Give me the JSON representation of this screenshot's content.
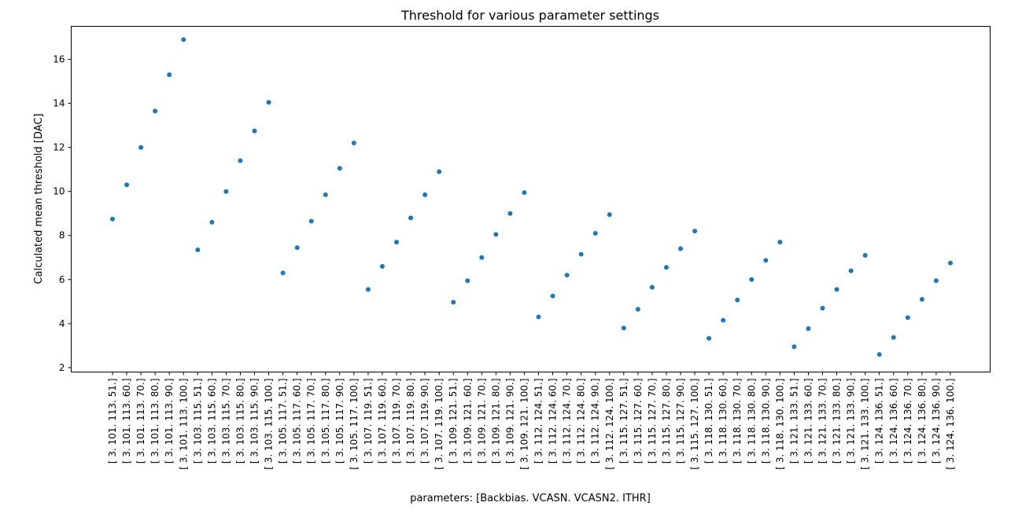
{
  "chart_data": {
    "type": "scatter",
    "title": "Threshold for various parameter settings",
    "xlabel": "parameters: [Backbias. VCASN. VCASN2. ITHR]",
    "ylabel": "Calculated mean threshold [DAC]",
    "ylim": [
      1.8,
      17.5
    ],
    "yticks": [
      2,
      4,
      6,
      8,
      10,
      12,
      14,
      16
    ],
    "grid": false,
    "marker_color": "#1f77b4",
    "categories": [
      "[  3. 101. 113.  51.]",
      "[  3. 101. 113.  60.]",
      "[  3. 101. 113.  70.]",
      "[  3. 101. 113.  80.]",
      "[  3. 101. 113.  90.]",
      "[  3. 101. 113. 100.]",
      "[  3. 103. 115.  51.]",
      "[  3. 103. 115.  60.]",
      "[  3. 103. 115.  70.]",
      "[  3. 103. 115.  80.]",
      "[  3. 103. 115.  90.]",
      "[  3. 103. 115. 100.]",
      "[  3. 105. 117.  51.]",
      "[  3. 105. 117.  60.]",
      "[  3. 105. 117.  70.]",
      "[  3. 105. 117.  80.]",
      "[  3. 105. 117.  90.]",
      "[  3. 105. 117. 100.]",
      "[  3. 107. 119.  51.]",
      "[  3. 107. 119.  60.]",
      "[  3. 107. 119.  70.]",
      "[  3. 107. 119.  80.]",
      "[  3. 107. 119.  90.]",
      "[  3. 107. 119. 100.]",
      "[  3. 109. 121.  51.]",
      "[  3. 109. 121.  60.]",
      "[  3. 109. 121.  70.]",
      "[  3. 109. 121.  80.]",
      "[  3. 109. 121.  90.]",
      "[  3. 109. 121. 100.]",
      "[  3. 112. 124.  51.]",
      "[  3. 112. 124.  60.]",
      "[  3. 112. 124.  70.]",
      "[  3. 112. 124.  80.]",
      "[  3. 112. 124.  90.]",
      "[  3. 112. 124. 100.]",
      "[  3. 115. 127.  51.]",
      "[  3. 115. 127.  60.]",
      "[  3. 115. 127.  70.]",
      "[  3. 115. 127.  80.]",
      "[  3. 115. 127.  90.]",
      "[  3. 115. 127. 100.]",
      "[  3. 118. 130.  51.]",
      "[  3. 118. 130.  60.]",
      "[  3. 118. 130.  70.]",
      "[  3. 118. 130.  80.]",
      "[  3. 118. 130.  90.]",
      "[  3. 118. 130. 100.]",
      "[  3. 121. 133.  51.]",
      "[  3. 121. 133.  60.]",
      "[  3. 121. 133.  70.]",
      "[  3. 121. 133.  80.]",
      "[  3. 121. 133.  90.]",
      "[  3. 121. 133. 100.]",
      "[  3. 124. 136.  51.]",
      "[  3. 124. 136.  60.]",
      "[  3. 124. 136.  70.]",
      "[  3. 124. 136.  80.]",
      "[  3. 124. 136.  90.]",
      "[  3. 124. 136. 100.]"
    ],
    "values": [
      8.75,
      10.3,
      12.0,
      13.65,
      15.3,
      16.9,
      7.35,
      8.6,
      10.0,
      11.4,
      12.75,
      14.05,
      6.3,
      7.45,
      8.65,
      9.85,
      11.05,
      12.2,
      5.55,
      6.6,
      7.7,
      8.8,
      9.85,
      10.9,
      4.97,
      5.95,
      7.0,
      8.05,
      9.0,
      9.95,
      4.3,
      5.25,
      6.2,
      7.15,
      8.1,
      8.95,
      3.8,
      4.65,
      5.65,
      6.55,
      7.4,
      8.2,
      3.33,
      4.15,
      5.07,
      6.0,
      6.87,
      7.7,
      2.95,
      3.77,
      4.7,
      5.55,
      6.4,
      7.1,
      2.6,
      3.37,
      4.27,
      5.1,
      5.95,
      6.75
    ]
  }
}
